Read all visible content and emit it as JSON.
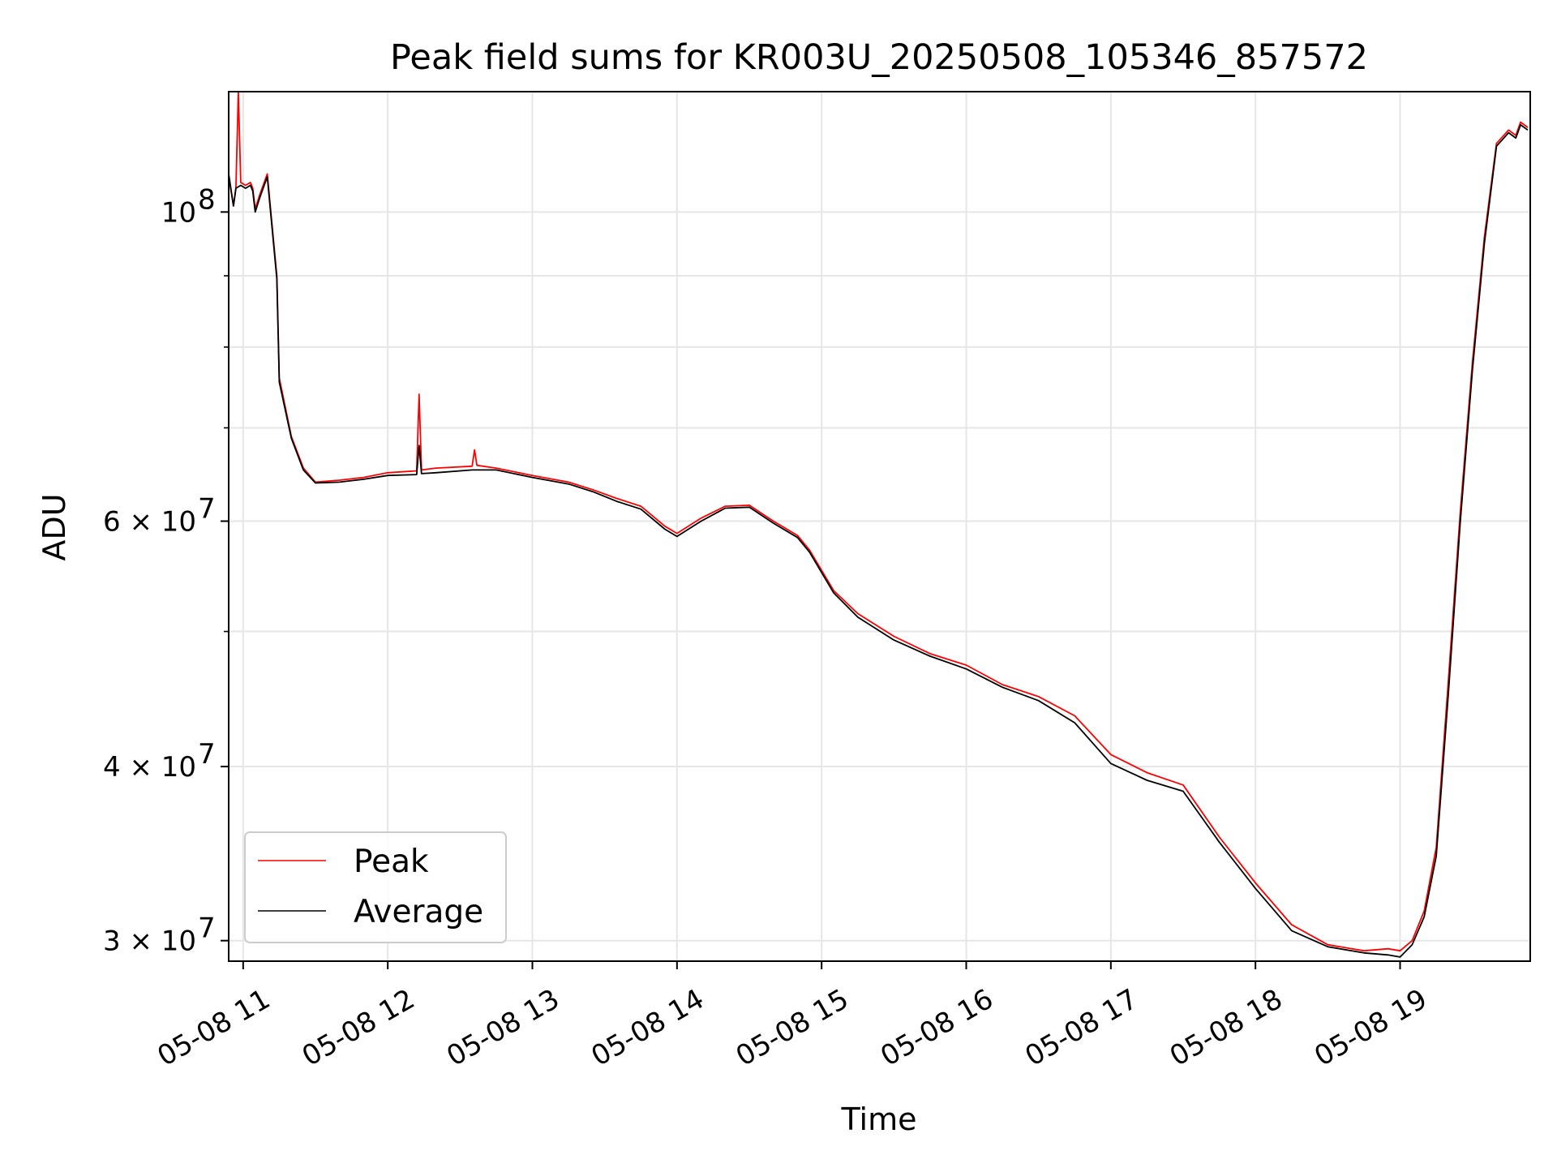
{
  "chart_data": {
    "type": "line",
    "title": "Peak field sums for KR003U_20250508_105346_857572",
    "xlabel": "Time",
    "ylabel": "ADU",
    "y_scale": "log",
    "ylim": [
      29000000,
      122000000
    ],
    "xlim": [
      "2025-05-08 10:54",
      "2025-05-08 19:54"
    ],
    "x_tick_labels": [
      "05-08 11",
      "05-08 12",
      "05-08 13",
      "05-08 14",
      "05-08 15",
      "05-08 16",
      "05-08 17",
      "05-08 18",
      "05-08 19"
    ],
    "y_ticks": [
      {
        "value": 100000000,
        "label": "10",
        "exp": "8"
      },
      {
        "value": 60000000,
        "label": "6 × 10",
        "exp": "7"
      },
      {
        "value": 40000000,
        "label": "4 × 10",
        "exp": "7"
      },
      {
        "value": 30000000,
        "label": "3 × 10",
        "exp": "7"
      }
    ],
    "y_minor_ticks": [
      50000000,
      70000000,
      80000000,
      90000000
    ],
    "grid": true,
    "legend_position": "lower-left",
    "series": [
      {
        "name": "Peak",
        "color": "#ff0000",
        "points": [
          [
            "2025-05-08 10:54",
            106000000
          ],
          [
            "2025-05-08 10:56",
            101000000
          ],
          [
            "2025-05-08 10:57",
            104000000
          ],
          [
            "2025-05-08 10:58",
            122000000
          ],
          [
            "2025-05-08 10:59",
            105000000
          ],
          [
            "2025-05-08 11:01",
            104500000
          ],
          [
            "2025-05-08 11:03",
            105000000
          ],
          [
            "2025-05-08 11:04",
            104000000
          ],
          [
            "2025-05-08 11:05",
            100500000
          ],
          [
            "2025-05-08 11:07",
            103000000
          ],
          [
            "2025-05-08 11:10",
            106500000
          ],
          [
            "2025-05-08 11:14",
            90000000
          ],
          [
            "2025-05-08 11:15",
            76000000
          ],
          [
            "2025-05-08 11:20",
            69000000
          ],
          [
            "2025-05-08 11:25",
            65500000
          ],
          [
            "2025-05-08 11:30",
            64000000
          ],
          [
            "2025-05-08 11:40",
            64200000
          ],
          [
            "2025-05-08 11:50",
            64500000
          ],
          [
            "2025-05-08 12:00",
            65000000
          ],
          [
            "2025-05-08 12:12",
            65200000
          ],
          [
            "2025-05-08 12:13",
            74000000
          ],
          [
            "2025-05-08 12:14",
            65300000
          ],
          [
            "2025-05-08 12:20",
            65500000
          ],
          [
            "2025-05-08 12:35",
            65700000
          ],
          [
            "2025-05-08 12:36",
            67500000
          ],
          [
            "2025-05-08 12:37",
            65800000
          ],
          [
            "2025-05-08 12:45",
            65500000
          ],
          [
            "2025-05-08 13:00",
            64700000
          ],
          [
            "2025-05-08 13:15",
            64000000
          ],
          [
            "2025-05-08 13:25",
            63200000
          ],
          [
            "2025-05-08 13:35",
            62300000
          ],
          [
            "2025-05-08 13:45",
            61500000
          ],
          [
            "2025-05-08 13:55",
            59500000
          ],
          [
            "2025-05-08 14:00",
            58800000
          ],
          [
            "2025-05-08 14:10",
            60300000
          ],
          [
            "2025-05-08 14:20",
            61500000
          ],
          [
            "2025-05-08 14:30",
            61600000
          ],
          [
            "2025-05-08 14:40",
            60000000
          ],
          [
            "2025-05-08 14:50",
            58600000
          ],
          [
            "2025-05-08 14:55",
            57200000
          ],
          [
            "2025-05-08 15:05",
            53500000
          ],
          [
            "2025-05-08 15:15",
            51500000
          ],
          [
            "2025-05-08 15:30",
            49600000
          ],
          [
            "2025-05-08 15:45",
            48200000
          ],
          [
            "2025-05-08 16:00",
            47300000
          ],
          [
            "2025-05-08 16:15",
            45800000
          ],
          [
            "2025-05-08 16:30",
            44900000
          ],
          [
            "2025-05-08 16:45",
            43500000
          ],
          [
            "2025-05-08 17:00",
            40800000
          ],
          [
            "2025-05-08 17:15",
            39600000
          ],
          [
            "2025-05-08 17:30",
            38800000
          ],
          [
            "2025-05-08 17:45",
            35600000
          ],
          [
            "2025-05-08 18:00",
            33000000
          ],
          [
            "2025-05-08 18:15",
            30800000
          ],
          [
            "2025-05-08 18:30",
            29800000
          ],
          [
            "2025-05-08 18:45",
            29500000
          ],
          [
            "2025-05-08 18:55",
            29600000
          ],
          [
            "2025-05-08 19:00",
            29500000
          ],
          [
            "2025-05-08 19:05",
            30000000
          ],
          [
            "2025-05-08 19:10",
            31500000
          ],
          [
            "2025-05-08 19:15",
            35000000
          ],
          [
            "2025-05-08 19:20",
            46000000
          ],
          [
            "2025-05-08 19:25",
            61000000
          ],
          [
            "2025-05-08 19:30",
            78000000
          ],
          [
            "2025-05-08 19:35",
            96000000
          ],
          [
            "2025-05-08 19:40",
            112000000
          ],
          [
            "2025-05-08 19:45",
            114500000
          ],
          [
            "2025-05-08 19:48",
            113500000
          ],
          [
            "2025-05-08 19:50",
            116000000
          ],
          [
            "2025-05-08 19:53",
            115000000
          ]
        ]
      },
      {
        "name": "Average",
        "color": "#000000",
        "points": [
          [
            "2025-05-08 10:54",
            106500000
          ],
          [
            "2025-05-08 10:56",
            101000000
          ],
          [
            "2025-05-08 10:57",
            104000000
          ],
          [
            "2025-05-08 10:59",
            104500000
          ],
          [
            "2025-05-08 11:01",
            104000000
          ],
          [
            "2025-05-08 11:03",
            104500000
          ],
          [
            "2025-05-08 11:04",
            103500000
          ],
          [
            "2025-05-08 11:05",
            100000000
          ],
          [
            "2025-05-08 11:07",
            102500000
          ],
          [
            "2025-05-08 11:10",
            106000000
          ],
          [
            "2025-05-08 11:14",
            89500000
          ],
          [
            "2025-05-08 11:15",
            75500000
          ],
          [
            "2025-05-08 11:20",
            68800000
          ],
          [
            "2025-05-08 11:25",
            65300000
          ],
          [
            "2025-05-08 11:30",
            63900000
          ],
          [
            "2025-05-08 11:40",
            64000000
          ],
          [
            "2025-05-08 11:50",
            64300000
          ],
          [
            "2025-05-08 12:00",
            64700000
          ],
          [
            "2025-05-08 12:12",
            64800000
          ],
          [
            "2025-05-08 12:13",
            68000000
          ],
          [
            "2025-05-08 12:14",
            64900000
          ],
          [
            "2025-05-08 12:20",
            65000000
          ],
          [
            "2025-05-08 12:35",
            65300000
          ],
          [
            "2025-05-08 12:45",
            65300000
          ],
          [
            "2025-05-08 13:00",
            64500000
          ],
          [
            "2025-05-08 13:15",
            63800000
          ],
          [
            "2025-05-08 13:25",
            63000000
          ],
          [
            "2025-05-08 13:35",
            62000000
          ],
          [
            "2025-05-08 13:45",
            61200000
          ],
          [
            "2025-05-08 13:55",
            59200000
          ],
          [
            "2025-05-08 14:00",
            58500000
          ],
          [
            "2025-05-08 14:10",
            60000000
          ],
          [
            "2025-05-08 14:20",
            61300000
          ],
          [
            "2025-05-08 14:30",
            61400000
          ],
          [
            "2025-05-08 14:40",
            59800000
          ],
          [
            "2025-05-08 14:50",
            58400000
          ],
          [
            "2025-05-08 14:55",
            57000000
          ],
          [
            "2025-05-08 15:05",
            53300000
          ],
          [
            "2025-05-08 15:15",
            51200000
          ],
          [
            "2025-05-08 15:30",
            49300000
          ],
          [
            "2025-05-08 15:45",
            48000000
          ],
          [
            "2025-05-08 16:00",
            47000000
          ],
          [
            "2025-05-08 16:15",
            45600000
          ],
          [
            "2025-05-08 16:30",
            44600000
          ],
          [
            "2025-05-08 16:45",
            43000000
          ],
          [
            "2025-05-08 17:00",
            40200000
          ],
          [
            "2025-05-08 17:15",
            39100000
          ],
          [
            "2025-05-08 17:30",
            38400000
          ],
          [
            "2025-05-08 17:45",
            35300000
          ],
          [
            "2025-05-08 18:00",
            32700000
          ],
          [
            "2025-05-08 18:15",
            30500000
          ],
          [
            "2025-05-08 18:30",
            29700000
          ],
          [
            "2025-05-08 18:45",
            29400000
          ],
          [
            "2025-05-08 18:55",
            29300000
          ],
          [
            "2025-05-08 19:00",
            29200000
          ],
          [
            "2025-05-08 19:05",
            29800000
          ],
          [
            "2025-05-08 19:10",
            31200000
          ],
          [
            "2025-05-08 19:15",
            34500000
          ],
          [
            "2025-05-08 19:20",
            45000000
          ],
          [
            "2025-05-08 19:25",
            60000000
          ],
          [
            "2025-05-08 19:30",
            77000000
          ],
          [
            "2025-05-08 19:35",
            95000000
          ],
          [
            "2025-05-08 19:40",
            111500000
          ],
          [
            "2025-05-08 19:45",
            114000000
          ],
          [
            "2025-05-08 19:48",
            113000000
          ],
          [
            "2025-05-08 19:50",
            115500000
          ],
          [
            "2025-05-08 19:53",
            114500000
          ]
        ]
      }
    ]
  }
}
